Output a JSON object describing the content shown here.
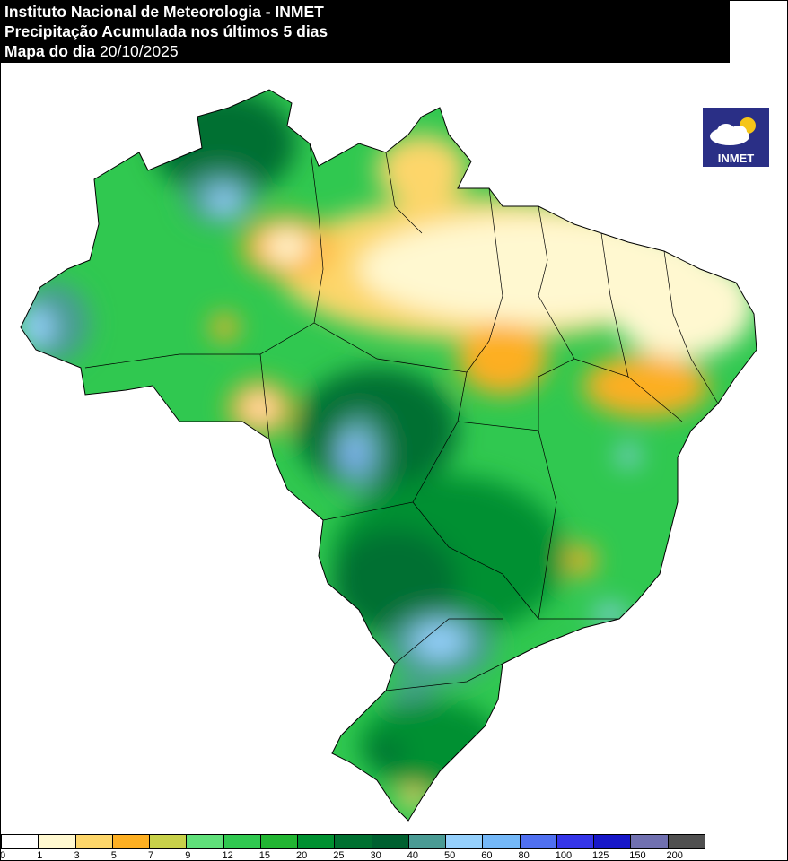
{
  "header": {
    "line1": "Instituto Nacional de Meteorologia - INMET",
    "line2": "Precipitação Acumulada nos últimos 5 dias",
    "line3_label": "Mapa do dia",
    "line3_date": "20/10/2025"
  },
  "logo": {
    "text": "INMET"
  },
  "legend": {
    "labels": [
      "0",
      "1",
      "3",
      "5",
      "7",
      "9",
      "12",
      "15",
      "20",
      "25",
      "30",
      "40",
      "50",
      "60",
      "80",
      "100",
      "125",
      "150",
      "200"
    ],
    "colors": [
      "#ffffff",
      "#fff8d0",
      "#fdd66a",
      "#fdaf22",
      "#c8d14a",
      "#60e07a",
      "#30c850",
      "#22b532",
      "#009030",
      "#007030",
      "#006030",
      "#4a9b94",
      "#95d0fc",
      "#74b8f8",
      "#5070f0",
      "#3535e8",
      "#1818c8",
      "#7070b0",
      "#505050"
    ]
  }
}
